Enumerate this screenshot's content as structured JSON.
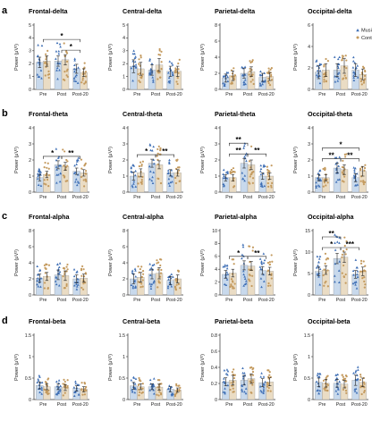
{
  "colors": {
    "music_fill": "#c8d9ec",
    "music_point": "#3f6fb5",
    "control_fill": "#eadcc4",
    "control_point": "#c49a5e",
    "axis": "#333333"
  },
  "chart_data": {
    "type": "bar",
    "categories": [
      "Pre",
      "Post",
      "Post-20"
    ],
    "ylabel": "Power (μV²)",
    "legend": {
      "placement": "top-right",
      "entries": [
        "Music",
        "Control"
      ]
    },
    "rows": [
      {
        "letter": "a",
        "panels": [
          {
            "title": "Frontal-delta",
            "ylim": [
              0,
              5
            ],
            "yticks": [
              0,
              1,
              2,
              3,
              4,
              5
            ],
            "series": [
              {
                "name": "Music",
                "values": [
                  2.1,
                  2.2,
                  1.6
                ],
                "err": [
                  0.4,
                  0.4,
                  0.35
                ]
              },
              {
                "name": "Control",
                "values": [
                  2.2,
                  2.3,
                  1.3
                ],
                "err": [
                  0.4,
                  0.4,
                  0.3
                ]
              }
            ],
            "sig": [
              {
                "from": 0,
                "to": 2,
                "label": "*"
              },
              {
                "from": 1,
                "to": 2,
                "label": "*"
              }
            ]
          },
          {
            "title": "Central-delta",
            "ylim": [
              0,
              5
            ],
            "yticks": [
              0,
              1,
              2,
              3,
              4,
              5
            ],
            "series": [
              {
                "name": "Music",
                "values": [
                  1.8,
                  1.5,
                  1.4
                ],
                "err": [
                  0.5,
                  0.4,
                  0.4
                ]
              },
              {
                "name": "Control",
                "values": [
                  1.6,
                  1.9,
                  1.4
                ],
                "err": [
                  0.5,
                  0.5,
                  0.4
                ]
              }
            ],
            "sig": []
          },
          {
            "title": "Parietal-delta",
            "ylim": [
              0,
              8
            ],
            "yticks": [
              0,
              2,
              4,
              6,
              8
            ],
            "series": [
              {
                "name": "Music",
                "values": [
                  1.4,
                  2.0,
                  1.5
                ],
                "err": [
                  0.5,
                  0.6,
                  0.5
                ]
              },
              {
                "name": "Control",
                "values": [
                  1.7,
                  2.2,
                  1.6
                ],
                "err": [
                  0.6,
                  0.6,
                  0.5
                ]
              }
            ],
            "sig": []
          },
          {
            "title": "Occipital-delta",
            "ylim": [
              0,
              6
            ],
            "yticks": [
              0,
              2,
              4,
              6
            ],
            "series": [
              {
                "name": "Music",
                "values": [
                  1.6,
                  1.8,
                  1.8
                ],
                "err": [
                  0.6,
                  0.6,
                  0.6
                ]
              },
              {
                "name": "Control",
                "values": [
                  1.8,
                  2.2,
                  1.4
                ],
                "err": [
                  0.6,
                  0.7,
                  0.5
                ]
              }
            ],
            "sig": []
          }
        ]
      },
      {
        "letter": "b",
        "panels": [
          {
            "title": "Frontal-theta",
            "ylim": [
              0,
              4
            ],
            "yticks": [
              0,
              1,
              2,
              3,
              4
            ],
            "series": [
              {
                "name": "Music",
                "values": [
                  0.9,
                  1.7,
                  1.3
                ],
                "err": [
                  0.2,
                  0.25,
                  0.2
                ]
              },
              {
                "name": "Control",
                "values": [
                  1.1,
                  1.6,
                  1.2
                ],
                "err": [
                  0.2,
                  0.25,
                  0.2
                ]
              }
            ],
            "sig": [
              {
                "from": 0,
                "to": 1,
                "label": "*"
              },
              {
                "from": 1,
                "to": 2,
                "label": "**"
              }
            ]
          },
          {
            "title": "Central-theta",
            "ylim": [
              0,
              4
            ],
            "yticks": [
              0,
              1,
              2,
              3,
              4
            ],
            "series": [
              {
                "name": "Music",
                "values": [
                  1.0,
                  1.8,
                  1.2
                ],
                "err": [
                  0.25,
                  0.25,
                  0.2
                ]
              },
              {
                "name": "Control",
                "values": [
                  1.2,
                  1.7,
                  1.2
                ],
                "err": [
                  0.25,
                  0.25,
                  0.2
                ]
              }
            ],
            "sig": [
              {
                "from": 0,
                "to": 1,
                "label": "*"
              },
              {
                "from": 1,
                "to": 2,
                "label": "**"
              }
            ]
          },
          {
            "title": "Parietal-theta",
            "ylim": [
              0,
              4
            ],
            "yticks": [
              0,
              1,
              2,
              3,
              4
            ],
            "series": [
              {
                "name": "Music",
                "values": [
                  0.9,
                  1.8,
                  1.0
                ],
                "err": [
                  0.2,
                  0.3,
                  0.2
                ]
              },
              {
                "name": "Control",
                "values": [
                  0.9,
                  1.7,
                  1.0
                ],
                "err": [
                  0.2,
                  0.3,
                  0.2
                ]
              }
            ],
            "sig": [
              {
                "from": 0,
                "to": 1,
                "label": "**"
              },
              {
                "from": 1,
                "to": 2,
                "label": "**"
              },
              {
                "from": 0,
                "to": 1,
                "label": "**",
                "level": 2
              }
            ]
          },
          {
            "title": "Occipital-theta",
            "ylim": [
              0,
              4
            ],
            "yticks": [
              0,
              1,
              2,
              3,
              4
            ],
            "series": [
              {
                "name": "Music",
                "values": [
                  0.9,
                  1.5,
                  0.9
                ],
                "err": [
                  0.2,
                  0.3,
                  0.25
                ]
              },
              {
                "name": "Control",
                "values": [
                  0.9,
                  1.4,
                  1.3
                ],
                "err": [
                  0.2,
                  0.3,
                  0.3
                ]
              }
            ],
            "sig": [
              {
                "from": 0,
                "to": 1,
                "label": "**"
              },
              {
                "from": 1,
                "to": 2,
                "label": "**"
              },
              {
                "from": 0,
                "to": 2,
                "label": "*",
                "level": 2
              }
            ]
          }
        ]
      },
      {
        "letter": "c",
        "panels": [
          {
            "title": "Frontal-alpha",
            "ylim": [
              0,
              8
            ],
            "yticks": [
              0,
              2,
              4,
              6,
              8
            ],
            "series": [
              {
                "name": "Music",
                "values": [
                  2.1,
                  2.5,
                  2.0
                ],
                "err": [
                  0.5,
                  0.6,
                  0.5
                ]
              },
              {
                "name": "Control",
                "values": [
                  2.3,
                  2.4,
                  2.1
                ],
                "err": [
                  0.5,
                  0.6,
                  0.5
                ]
              }
            ],
            "sig": []
          },
          {
            "title": "Central-alpha",
            "ylim": [
              0,
              8
            ],
            "yticks": [
              0,
              2,
              4,
              6,
              8
            ],
            "series": [
              {
                "name": "Music",
                "values": [
                  2.0,
                  2.6,
                  1.8
                ],
                "err": [
                  0.6,
                  0.6,
                  0.5
                ]
              },
              {
                "name": "Control",
                "values": [
                  2.2,
                  2.7,
                  2.0
                ],
                "err": [
                  0.6,
                  0.7,
                  0.5
                ]
              }
            ],
            "sig": []
          },
          {
            "title": "Parietal-alpha",
            "ylim": [
              0,
              10
            ],
            "yticks": [
              0,
              2,
              4,
              6,
              8,
              10
            ],
            "series": [
              {
                "name": "Music",
                "values": [
                  3.2,
                  4.6,
                  3.8
                ],
                "err": [
                  0.6,
                  0.7,
                  0.6
                ]
              },
              {
                "name": "Control",
                "values": [
                  3.4,
                  4.5,
                  3.7
                ],
                "err": [
                  0.6,
                  0.7,
                  0.6
                ]
              }
            ],
            "sig": [
              {
                "from": 0,
                "to": 1,
                "label": "*"
              },
              {
                "from": 1,
                "to": 2,
                "label": "**"
              }
            ]
          },
          {
            "title": "Occipital-alpha",
            "ylim": [
              0,
              15
            ],
            "yticks": [
              0,
              5,
              10,
              15
            ],
            "series": [
              {
                "name": "Music",
                "values": [
                  5.5,
                  8.5,
                  4.8
                ],
                "err": [
                  1.0,
                  1.2,
                  0.9
                ]
              },
              {
                "name": "Control",
                "values": [
                  5.8,
                  8.8,
                  5.5
                ],
                "err": [
                  1.0,
                  1.2,
                  1.0
                ]
              }
            ],
            "sig": [
              {
                "from": 0,
                "to": 1,
                "label": "*"
              },
              {
                "from": 1,
                "to": 2,
                "label": "***"
              },
              {
                "from": 0,
                "to": 1,
                "label": "**",
                "level": 2
              }
            ]
          }
        ]
      },
      {
        "letter": "d",
        "panels": [
          {
            "title": "Frontal-beta",
            "ylim": [
              0,
              1.5
            ],
            "yticks": [
              0.0,
              0.5,
              1.0,
              1.5
            ],
            "series": [
              {
                "name": "Music",
                "values": [
                  0.33,
                  0.3,
                  0.26
                ],
                "err": [
                  0.08,
                  0.07,
                  0.06
                ]
              },
              {
                "name": "Control",
                "values": [
                  0.3,
                  0.28,
                  0.24
                ],
                "err": [
                  0.07,
                  0.07,
                  0.06
                ]
              }
            ],
            "sig": []
          },
          {
            "title": "Central-beta",
            "ylim": [
              0,
              1.5
            ],
            "yticks": [
              0.0,
              0.5,
              1.0,
              1.5
            ],
            "series": [
              {
                "name": "Music",
                "values": [
                  0.32,
                  0.3,
                  0.24
                ],
                "err": [
                  0.08,
                  0.07,
                  0.06
                ]
              },
              {
                "name": "Control",
                "values": [
                  0.3,
                  0.29,
                  0.22
                ],
                "err": [
                  0.07,
                  0.07,
                  0.05
                ]
              }
            ],
            "sig": []
          },
          {
            "title": "Parietal-beta",
            "ylim": [
              0,
              0.8
            ],
            "yticks": [
              0.0,
              0.2,
              0.4,
              0.6,
              0.8
            ],
            "series": [
              {
                "name": "Music",
                "values": [
                  0.22,
                  0.24,
                  0.21
                ],
                "err": [
                  0.05,
                  0.06,
                  0.05
                ]
              },
              {
                "name": "Control",
                "values": [
                  0.24,
                  0.26,
                  0.22
                ],
                "err": [
                  0.06,
                  0.06,
                  0.05
                ]
              }
            ],
            "sig": []
          },
          {
            "title": "Occipital-beta",
            "ylim": [
              0,
              1.5
            ],
            "yticks": [
              0.0,
              0.5,
              1.0,
              1.5
            ],
            "series": [
              {
                "name": "Music",
                "values": [
                  0.4,
                  0.38,
                  0.45
                ],
                "err": [
                  0.1,
                  0.09,
                  0.12
                ]
              },
              {
                "name": "Control",
                "values": [
                  0.38,
                  0.36,
                  0.4
                ],
                "err": [
                  0.09,
                  0.09,
                  0.1
                ]
              }
            ],
            "sig": []
          }
        ]
      }
    ]
  }
}
